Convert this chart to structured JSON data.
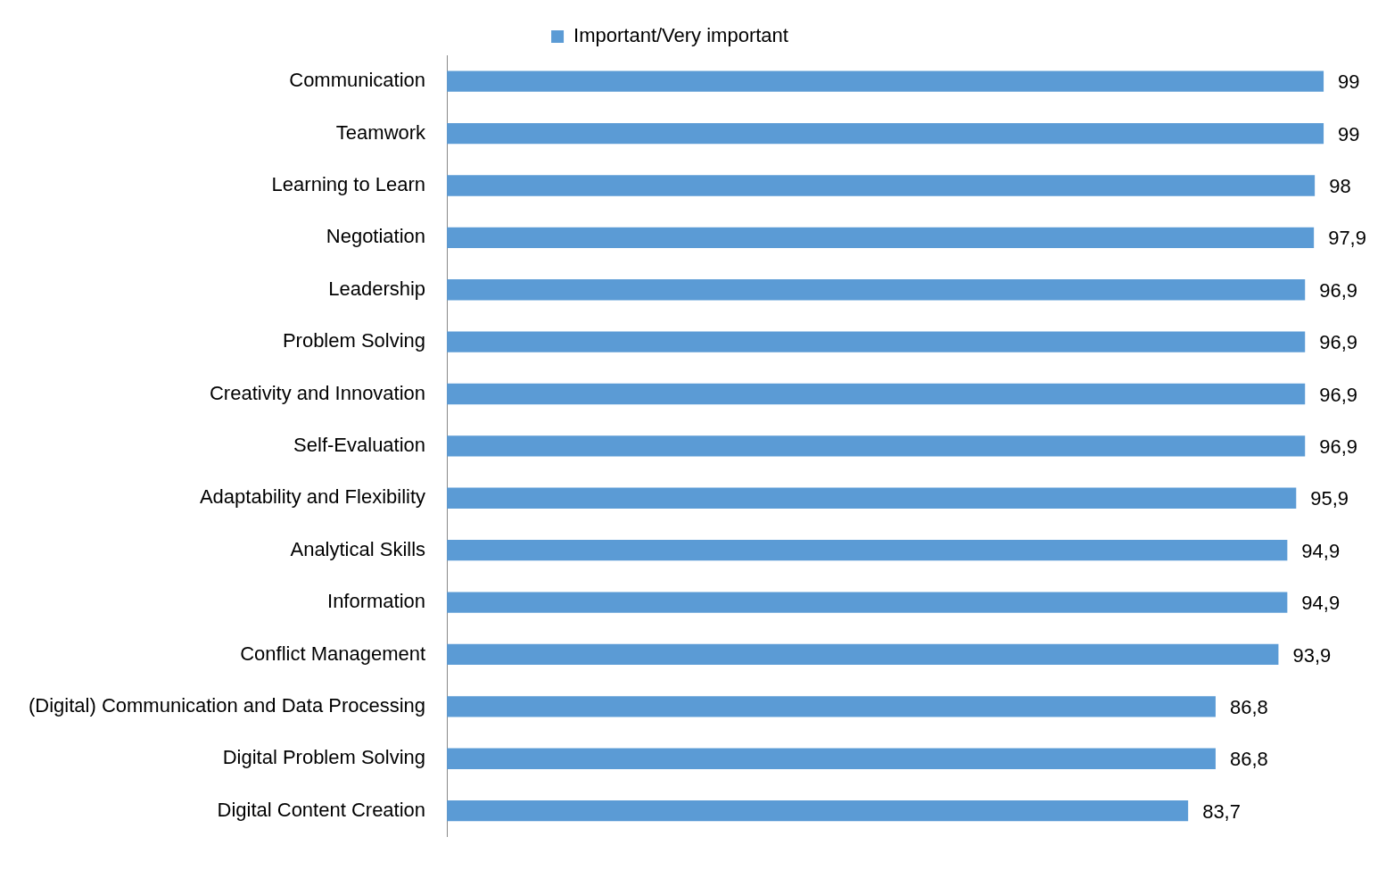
{
  "chart_data": {
    "type": "bar",
    "orientation": "horizontal",
    "categories": [
      "Communication",
      "Teamwork",
      "Learning to Learn",
      "Negotiation",
      "Leadership",
      "Problem Solving",
      "Creativity and Innovation",
      "Self-Evaluation",
      "Adaptability and Flexibility",
      "Analytical Skills",
      "Information",
      "Conflict Management",
      "(Digital) Communication and Data Processing",
      "Digital Problem Solving",
      "Digital Content Creation"
    ],
    "series": [
      {
        "name": "Important/Very important",
        "color": "#5b9bd5",
        "values": [
          99,
          99,
          98,
          97.9,
          96.9,
          96.9,
          96.9,
          96.9,
          95.9,
          94.9,
          94.9,
          93.9,
          86.8,
          86.8,
          83.7
        ],
        "value_labels": [
          "99",
          "99",
          "98",
          "97,9",
          "96,9",
          "96,9",
          "96,9",
          "96,9",
          "95,9",
          "94,9",
          "94,9",
          "93,9",
          "86,8",
          "86,8",
          "83,7"
        ]
      }
    ],
    "tick_labels": "y",
    "grid": false,
    "legend": "top"
  }
}
